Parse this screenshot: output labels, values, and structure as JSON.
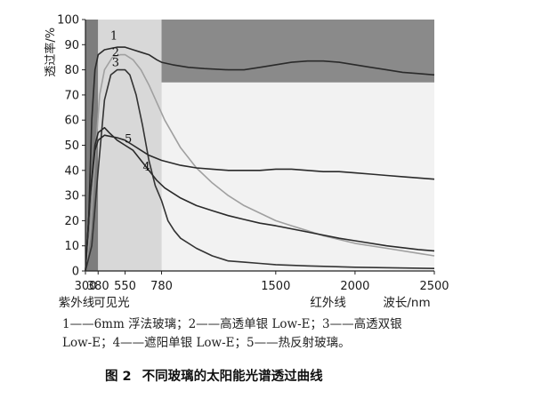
{
  "chart_data": {
    "type": "line",
    "title": "不同玻璃的太阳能光谱透过曲线",
    "xlabel": "波长/nm",
    "ylabel": "透过率/%",
    "xlim": [
      300,
      2500
    ],
    "ylim": [
      0,
      100
    ],
    "x_ticks": [
      {
        "value": 300,
        "label": "300"
      },
      {
        "value": 380,
        "label": "380"
      },
      {
        "value": 550,
        "label": "550"
      },
      {
        "value": 780,
        "label": "780"
      },
      {
        "value": 1500,
        "label": "1500"
      },
      {
        "value": 2000,
        "label": "2000"
      },
      {
        "value": 2500,
        "label": "2500"
      }
    ],
    "y_ticks": [
      0,
      10,
      20,
      30,
      40,
      50,
      60,
      70,
      80,
      90,
      100
    ],
    "regions": [
      {
        "name": "紫外线",
        "from": 300,
        "to": 380,
        "color": "#7d7d7d"
      },
      {
        "name": "可见光",
        "from": 380,
        "to": 780,
        "color": "#d8d8d8"
      },
      {
        "name": "红外线",
        "from": 780,
        "to": 2500,
        "color": "#8a8a8a"
      }
    ],
    "series": [
      {
        "name": "1",
        "desc": "6mm 浮法玻璃",
        "color": "#2a2a2a",
        "label_point": [
          480,
          92
        ],
        "points": [
          [
            300,
            0
          ],
          [
            320,
            20
          ],
          [
            340,
            60
          ],
          [
            360,
            80
          ],
          [
            380,
            86
          ],
          [
            420,
            88
          ],
          [
            500,
            89
          ],
          [
            550,
            89
          ],
          [
            600,
            88
          ],
          [
            650,
            87
          ],
          [
            700,
            86
          ],
          [
            750,
            84
          ],
          [
            780,
            83
          ],
          [
            850,
            82
          ],
          [
            950,
            81
          ],
          [
            1050,
            80.5
          ],
          [
            1200,
            80
          ],
          [
            1300,
            80
          ],
          [
            1400,
            81
          ],
          [
            1500,
            82
          ],
          [
            1600,
            83
          ],
          [
            1700,
            83.5
          ],
          [
            1800,
            83.5
          ],
          [
            1900,
            83
          ],
          [
            2000,
            82
          ],
          [
            2100,
            81
          ],
          [
            2200,
            80
          ],
          [
            2300,
            79
          ],
          [
            2400,
            78.5
          ],
          [
            2500,
            78
          ]
        ]
      },
      {
        "name": "2",
        "desc": "高透单银 Low-E",
        "color": "#a0a0a0",
        "label_point": [
          490,
          85.5
        ],
        "points": [
          [
            300,
            0
          ],
          [
            330,
            15
          ],
          [
            360,
            45
          ],
          [
            390,
            70
          ],
          [
            420,
            80
          ],
          [
            470,
            85
          ],
          [
            520,
            86
          ],
          [
            550,
            86
          ],
          [
            600,
            84
          ],
          [
            650,
            80
          ],
          [
            700,
            74
          ],
          [
            750,
            67
          ],
          [
            800,
            60
          ],
          [
            900,
            49
          ],
          [
            1000,
            41
          ],
          [
            1100,
            35
          ],
          [
            1200,
            30
          ],
          [
            1300,
            26
          ],
          [
            1400,
            23
          ],
          [
            1500,
            20
          ],
          [
            1600,
            18
          ],
          [
            1700,
            16
          ],
          [
            1800,
            14
          ],
          [
            1900,
            12.5
          ],
          [
            2000,
            11
          ],
          [
            2200,
            9
          ],
          [
            2400,
            7
          ],
          [
            2500,
            6
          ]
        ]
      },
      {
        "name": "3",
        "desc": "高透双银 Low-E",
        "color": "#333333",
        "label_point": [
          490,
          81.5
        ],
        "points": [
          [
            300,
            0
          ],
          [
            340,
            10
          ],
          [
            380,
            40
          ],
          [
            420,
            68
          ],
          [
            460,
            78
          ],
          [
            500,
            80
          ],
          [
            550,
            80
          ],
          [
            580,
            78
          ],
          [
            620,
            70
          ],
          [
            660,
            58
          ],
          [
            700,
            44
          ],
          [
            740,
            34
          ],
          [
            780,
            28
          ],
          [
            820,
            20
          ],
          [
            860,
            16
          ],
          [
            900,
            13
          ],
          [
            1000,
            9
          ],
          [
            1100,
            6
          ],
          [
            1200,
            4
          ],
          [
            1300,
            3.5
          ],
          [
            1400,
            3
          ],
          [
            1500,
            2.5
          ],
          [
            1700,
            2
          ],
          [
            2000,
            1.5
          ],
          [
            2500,
            1
          ]
        ]
      },
      {
        "name": "4",
        "desc": "遮阳单银 Low-E",
        "color": "#2a2a2a",
        "label_point": [
          685,
          40
        ],
        "points": [
          [
            300,
            0
          ],
          [
            330,
            30
          ],
          [
            360,
            50
          ],
          [
            380,
            55
          ],
          [
            420,
            57
          ],
          [
            450,
            55
          ],
          [
            500,
            52
          ],
          [
            550,
            50
          ],
          [
            600,
            48
          ],
          [
            650,
            44
          ],
          [
            700,
            40
          ],
          [
            750,
            36
          ],
          [
            800,
            33
          ],
          [
            900,
            29
          ],
          [
            1000,
            26
          ],
          [
            1100,
            24
          ],
          [
            1200,
            22
          ],
          [
            1300,
            20.5
          ],
          [
            1400,
            19
          ],
          [
            1500,
            18
          ],
          [
            1700,
            15.5
          ],
          [
            1900,
            13
          ],
          [
            2000,
            12
          ],
          [
            2200,
            10
          ],
          [
            2400,
            8.5
          ],
          [
            2500,
            8
          ]
        ]
      },
      {
        "name": "5",
        "desc": "热反射玻璃",
        "color": "#2a2a2a",
        "label_point": [
          570,
          51
        ],
        "points": [
          [
            300,
            0
          ],
          [
            330,
            30
          ],
          [
            360,
            48
          ],
          [
            380,
            52
          ],
          [
            420,
            54
          ],
          [
            500,
            53
          ],
          [
            550,
            52
          ],
          [
            600,
            50
          ],
          [
            650,
            48
          ],
          [
            700,
            46
          ],
          [
            780,
            44
          ],
          [
            900,
            42
          ],
          [
            1000,
            41
          ],
          [
            1100,
            40.5
          ],
          [
            1200,
            40
          ],
          [
            1300,
            40
          ],
          [
            1400,
            40
          ],
          [
            1500,
            40.5
          ],
          [
            1600,
            40.5
          ],
          [
            1700,
            40
          ],
          [
            1800,
            39.5
          ],
          [
            1900,
            39.5
          ],
          [
            2000,
            39
          ],
          [
            2100,
            38.5
          ],
          [
            2200,
            38
          ],
          [
            2300,
            37.5
          ],
          [
            2400,
            37
          ],
          [
            2500,
            36.5
          ]
        ]
      }
    ]
  },
  "legend_lines": [
    "1——6mm 浮法玻璃；2——高透单银 Low-E；3——高透双银",
    "Low-E；4——遮阳单银 Low-E；5——热反射玻璃。"
  ],
  "caption": {
    "figure_no": "图 2",
    "title": "不同玻璃的太阳能光谱透过曲线"
  }
}
